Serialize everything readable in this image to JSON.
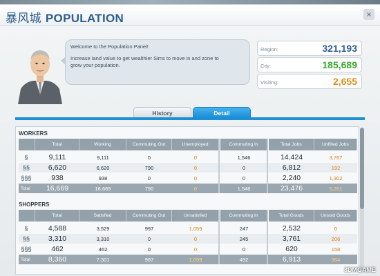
{
  "window": {
    "title_city": "暴风城",
    "title": "POPULATION",
    "close_glyph": "×"
  },
  "advisor": {
    "greeting": "Welcome to the Population Panel!",
    "message_line1": "Increase land value to get wealthier Sims to move in and zone to",
    "message_line2": "grow your population."
  },
  "stats": {
    "region_label": "Region:",
    "region_value": "321,193",
    "city_label": "City:",
    "city_value": "185,689",
    "visiting_label": "Visiting:",
    "visiting_value": "2,655",
    "colors": {
      "region": "#2c5e8f",
      "city": "#3aaa2e",
      "visiting": "#e08a1a"
    }
  },
  "tabs": [
    {
      "label": "History",
      "active": false
    },
    {
      "label": "Detail",
      "active": true
    }
  ],
  "workers": {
    "section_title": "WORKERS",
    "headers": [
      "Total",
      "Working",
      "Commuting Out",
      "Unemployed",
      "Commuting In",
      "Total Jobs",
      "Unfilled Jobs"
    ],
    "rows": [
      {
        "icon": "§",
        "icon_name": "low-wealth-icon",
        "values": [
          "9,111",
          "9,111",
          "0",
          "0",
          "1,546",
          "14,424",
          "3,767"
        ]
      },
      {
        "icon": "§§",
        "icon_name": "medium-wealth-icon",
        "values": [
          "6,620",
          "6,620",
          "790",
          "0",
          "0",
          "6,812",
          "192"
        ]
      },
      {
        "icon": "§§§",
        "icon_name": "high-wealth-icon",
        "values": [
          "938",
          "938",
          "0",
          "0",
          "0",
          "2,240",
          "1,302"
        ]
      }
    ],
    "total": {
      "label": "Total",
      "values": [
        "16,669",
        "16,669",
        "790",
        "0",
        "1,546",
        "23,476",
        "5,261"
      ]
    }
  },
  "shoppers": {
    "section_title": "SHOPPERS",
    "headers": [
      "Total",
      "Satisfied",
      "Commuting Out",
      "Unsatisfied",
      "Commuting In",
      "Total Goods",
      "Unsold Goods"
    ],
    "rows": [
      {
        "icon": "§",
        "icon_name": "low-wealth-icon",
        "values": [
          "4,588",
          "3,529",
          "997",
          "1,059",
          "247",
          "2,532",
          "0"
        ]
      },
      {
        "icon": "§§",
        "icon_name": "medium-wealth-icon",
        "values": [
          "3,310",
          "3,310",
          "0",
          "0",
          "245",
          "3,761",
          "206"
        ]
      },
      {
        "icon": "§§§",
        "icon_name": "high-wealth-icon",
        "values": [
          "462",
          "462",
          "0",
          "0",
          "0",
          "620",
          "158"
        ]
      }
    ],
    "total": {
      "label": "Total",
      "values": [
        "8,360",
        "7,301",
        "997",
        "1,059",
        "492",
        "6,913",
        "364"
      ]
    }
  },
  "watermark": "3DMGAME"
}
